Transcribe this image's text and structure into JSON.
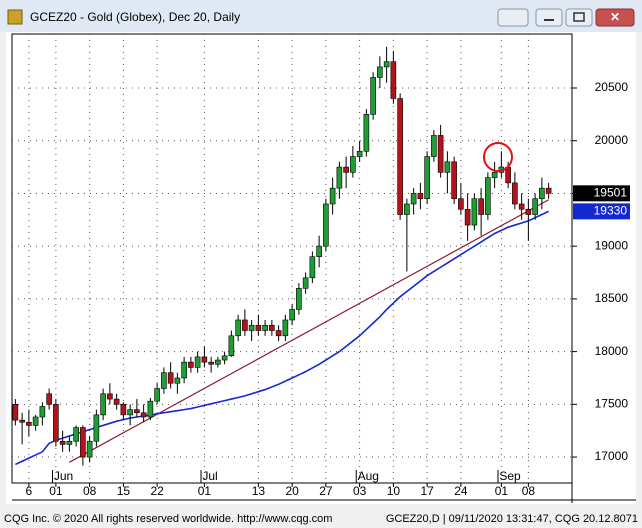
{
  "chart_data": {
    "type": "candlestick",
    "title": "GCEZ20 - Gold (Globex), Dec 20, Daily",
    "categories": [
      "May 21",
      "May 22",
      "May 26",
      "May 27",
      "May 28",
      "May 29",
      "Jun 01",
      "Jun 02",
      "Jun 03",
      "Jun 04",
      "Jun 05",
      "Jun 08",
      "Jun 09",
      "Jun 10",
      "Jun 11",
      "Jun 12",
      "Jun 15",
      "Jun 16",
      "Jun 17",
      "Jun 18",
      "Jun 19",
      "Jun 22",
      "Jun 23",
      "Jun 24",
      "Jun 25",
      "Jun 26",
      "Jun 29",
      "Jun 30",
      "Jul 01",
      "Jul 02",
      "Jul 03",
      "Jul 06",
      "Jul 07",
      "Jul 08",
      "Jul 09",
      "Jul 10",
      "Jul 13",
      "Jul 14",
      "Jul 15",
      "Jul 16",
      "Jul 17",
      "Jul 20",
      "Jul 21",
      "Jul 22",
      "Jul 23",
      "Jul 24",
      "Jul 27",
      "Jul 28",
      "Jul 29",
      "Jul 30",
      "Jul 31",
      "Aug 03",
      "Aug 04",
      "Aug 05",
      "Aug 06",
      "Aug 07",
      "Aug 10",
      "Aug 11",
      "Aug 12",
      "Aug 13",
      "Aug 14",
      "Aug 17",
      "Aug 18",
      "Aug 19",
      "Aug 20",
      "Aug 21",
      "Aug 24",
      "Aug 25",
      "Aug 26",
      "Aug 27",
      "Aug 28",
      "Aug 31",
      "Sep 01",
      "Sep 02",
      "Sep 03",
      "Sep 04",
      "Sep 08",
      "Sep 09",
      "Sep 10",
      "Sep 11"
    ],
    "open": [
      17500,
      17350,
      17330,
      17300,
      17380,
      17600,
      17500,
      17150,
      17120,
      17150,
      17280,
      17000,
      17150,
      17400,
      17600,
      17550,
      17500,
      17400,
      17450,
      17420,
      17380,
      17530,
      17650,
      17800,
      17700,
      17750,
      17900,
      17850,
      17950,
      17900,
      17880,
      17920,
      17960,
      18150,
      18300,
      18200,
      18250,
      18200,
      18250,
      18200,
      18150,
      18300,
      18400,
      18600,
      18700,
      18900,
      19000,
      19400,
      19550,
      19750,
      19700,
      19850,
      19900,
      20250,
      20600,
      20700,
      20750,
      20400,
      19300,
      19400,
      19500,
      19450,
      19850,
      20050,
      19700,
      19800,
      19450,
      19350,
      19200,
      19450,
      19300,
      19650,
      19700,
      19750,
      19600,
      19400,
      19350,
      19300,
      19450,
      19550
    ],
    "high": [
      17550,
      17420,
      17450,
      17400,
      17520,
      17650,
      17550,
      17250,
      17200,
      17300,
      17300,
      17200,
      17450,
      17650,
      17700,
      17600,
      17520,
      17500,
      17550,
      17500,
      17560,
      17700,
      17850,
      17900,
      17800,
      17950,
      17950,
      18000,
      18050,
      17950,
      17950,
      18000,
      18200,
      18350,
      18400,
      18300,
      18350,
      18300,
      18300,
      18250,
      18350,
      18450,
      18650,
      18750,
      18950,
      19100,
      19450,
      19650,
      19800,
      19850,
      19950,
      20000,
      20300,
      20650,
      20800,
      20890,
      20850,
      20450,
      19450,
      19550,
      19600,
      19900,
      20100,
      20150,
      19900,
      19850,
      19600,
      19500,
      19500,
      19550,
      19700,
      19800,
      19900,
      19800,
      19700,
      19500,
      19450,
      19500,
      19650,
      19600
    ],
    "low": [
      17300,
      17120,
      17200,
      17250,
      17300,
      17450,
      17100,
      17050,
      17050,
      17100,
      16920,
      16950,
      17100,
      17350,
      17500,
      17450,
      17350,
      17300,
      17380,
      17330,
      17350,
      17500,
      17600,
      17650,
      17600,
      17700,
      17800,
      17800,
      17850,
      17800,
      17850,
      17880,
      17950,
      18100,
      18150,
      18100,
      18150,
      18150,
      18150,
      18100,
      18100,
      18250,
      18350,
      18550,
      18650,
      18800,
      18950,
      19300,
      19450,
      19550,
      19650,
      19800,
      19850,
      20200,
      20500,
      20550,
      20350,
      19250,
      18760,
      19300,
      19350,
      19400,
      19800,
      19650,
      19500,
      19400,
      19300,
      19050,
      19150,
      19100,
      19250,
      19550,
      19650,
      19550,
      19350,
      19250,
      19050,
      19250,
      19350,
      19450
    ],
    "close": [
      17350,
      17330,
      17300,
      17380,
      17480,
      17500,
      17150,
      17120,
      17150,
      17280,
      17000,
      17150,
      17400,
      17600,
      17550,
      17500,
      17400,
      17450,
      17420,
      17380,
      17530,
      17650,
      17800,
      17700,
      17750,
      17900,
      17850,
      17950,
      17900,
      17880,
      17920,
      17960,
      18150,
      18300,
      18200,
      18250,
      18200,
      18250,
      18200,
      18150,
      18300,
      18400,
      18600,
      18700,
      18900,
      19000,
      19400,
      19550,
      19750,
      19700,
      19850,
      19900,
      20250,
      20600,
      20700,
      20750,
      20400,
      19300,
      19400,
      19500,
      19450,
      19850,
      20050,
      19700,
      19800,
      19450,
      19350,
      19200,
      19450,
      19300,
      19650,
      19700,
      19750,
      19600,
      19400,
      19350,
      19300,
      19450,
      19550,
      19501
    ],
    "up_color": "#1e9e34",
    "down_color": "#b3141c",
    "ma": {
      "color": "#1428d2",
      "values": [
        16930,
        16960,
        16990,
        17020,
        17050,
        17130,
        17160,
        17180,
        17200,
        17220,
        17240,
        17260,
        17280,
        17300,
        17320,
        17340,
        17355,
        17370,
        17380,
        17390,
        17400,
        17410,
        17420,
        17430,
        17440,
        17450,
        17460,
        17475,
        17490,
        17505,
        17520,
        17535,
        17550,
        17565,
        17580,
        17600,
        17620,
        17640,
        17665,
        17690,
        17720,
        17750,
        17780,
        17810,
        17845,
        17880,
        17920,
        17960,
        18000,
        18050,
        18100,
        18150,
        18210,
        18270,
        18330,
        18400,
        18460,
        18520,
        18570,
        18620,
        18670,
        18720,
        18760,
        18800,
        18840,
        18880,
        18920,
        18960,
        19000,
        19040,
        19080,
        19120,
        19150,
        19180,
        19200,
        19220,
        19240,
        19270,
        19300,
        19330
      ]
    },
    "trendline": {
      "color": "#8c1c30",
      "x": [
        "Jun 03",
        "Sep 11"
      ],
      "values": [
        16950,
        19440
      ]
    },
    "ylim": [
      16754,
      21012
    ],
    "yticks": [
      17000,
      17500,
      18000,
      18500,
      19000,
      19500,
      20000,
      20500
    ],
    "xticks": [
      {
        "value": "May 26",
        "label": "6"
      },
      {
        "value": "Jun 01",
        "label": "01"
      },
      {
        "value": "Jun 08",
        "label": "08"
      },
      {
        "value": "Jun 15",
        "label": "15"
      },
      {
        "value": "Jun 22",
        "label": "22"
      },
      {
        "value": "Jul 01",
        "label": "01"
      },
      {
        "value": "Jul 13",
        "label": "13"
      },
      {
        "value": "Jul 20",
        "label": "20"
      },
      {
        "value": "Jul 27",
        "label": "27"
      },
      {
        "value": "Aug 03",
        "label": "03"
      },
      {
        "value": "Aug 10",
        "label": "10"
      },
      {
        "value": "Aug 17",
        "label": "17"
      },
      {
        "value": "Aug 24",
        "label": "24"
      },
      {
        "value": "Sep 01",
        "label": "01"
      },
      {
        "value": "Sep 08",
        "label": "08"
      }
    ],
    "month_labels": [
      {
        "value": "Jun 01",
        "label": "Jun"
      },
      {
        "value": "Jul 01",
        "label": "Jul"
      },
      {
        "value": "Aug 03",
        "label": "Aug"
      },
      {
        "value": "Sep 01",
        "label": "Sep"
      }
    ],
    "grid": true
  },
  "footer": {
    "left": "CQG Inc. © 2020 All rights reserved worldwide. http://www.cqg.com",
    "right": "GCEZ20,D | 09/11/2020 13:31:47, CQG 20.12.8071"
  }
}
